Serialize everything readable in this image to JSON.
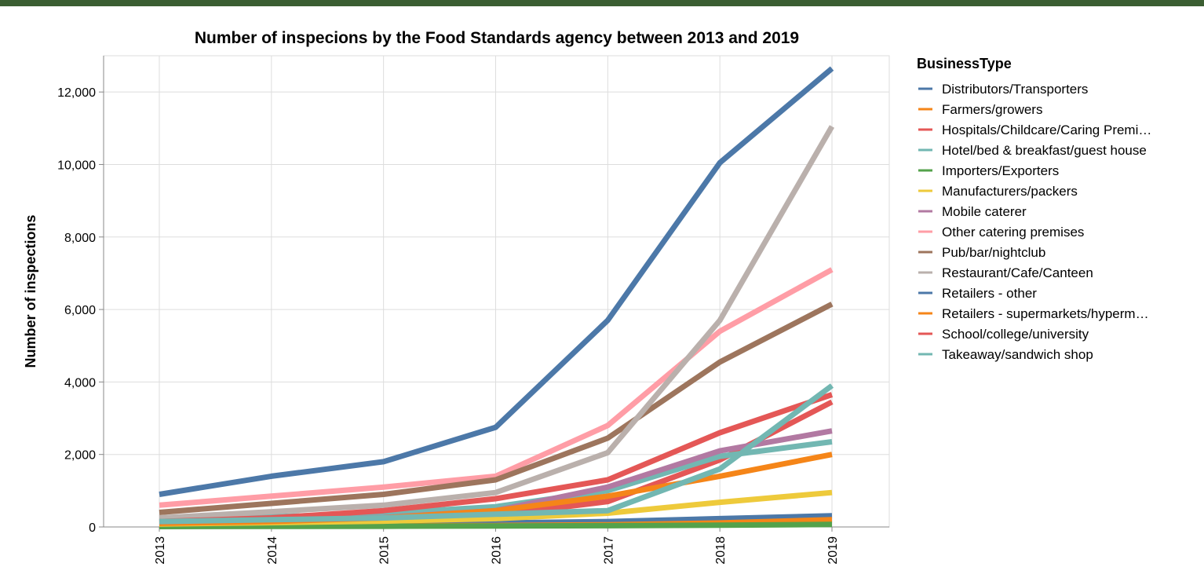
{
  "chart_data": {
    "type": "line",
    "title": "Number of inspecions by the Food Standards agency between 2013 and 2019",
    "xlabel": "",
    "ylabel": "Number of inspections",
    "x": [
      "2013",
      "2014",
      "2015",
      "2016",
      "2017",
      "2018",
      "2019"
    ],
    "y_ticks": [
      "0",
      "2,000",
      "4,000",
      "6,000",
      "8,000",
      "10,000",
      "12,000"
    ],
    "ylim": [
      0,
      13000
    ],
    "grid": true,
    "legend": {
      "title": "BusinessType",
      "position": "right"
    },
    "series": [
      {
        "name": "Distributors/Transporters",
        "color": "#4c78a8",
        "values": [
          60,
          80,
          90,
          110,
          150,
          230,
          310
        ]
      },
      {
        "name": "Farmers/growers",
        "color": "#f58518",
        "values": [
          20,
          25,
          30,
          40,
          60,
          110,
          200
        ]
      },
      {
        "name": "Hospitals/Childcare/Caring Premi…",
        "color": "#e45756",
        "values": [
          150,
          180,
          220,
          320,
          700,
          1850,
          3450
        ]
      },
      {
        "name": "Hotel/bed & breakfast/guest house",
        "color": "#72b7b2",
        "values": [
          200,
          280,
          380,
          560,
          1000,
          1950,
          2350
        ]
      },
      {
        "name": "Importers/Exporters",
        "color": "#54a24b",
        "values": [
          10,
          15,
          20,
          25,
          35,
          50,
          70
        ]
      },
      {
        "name": "Manufacturers/packers",
        "color": "#eeca3b",
        "values": [
          80,
          120,
          160,
          230,
          380,
          680,
          950
        ]
      },
      {
        "name": "Mobile caterer",
        "color": "#b279a2",
        "values": [
          120,
          180,
          260,
          450,
          1100,
          2100,
          2650
        ]
      },
      {
        "name": "Other catering premises",
        "color": "#ff9da6",
        "values": [
          600,
          850,
          1100,
          1400,
          2800,
          5400,
          7100
        ]
      },
      {
        "name": "Pub/bar/nightclub",
        "color": "#9d755d",
        "values": [
          400,
          650,
          900,
          1300,
          2450,
          4550,
          6150
        ]
      },
      {
        "name": "Restaurant/Cafe/Canteen",
        "color": "#bab0ac",
        "values": [
          250,
          420,
          600,
          950,
          2050,
          5700,
          11050
        ]
      },
      {
        "name": "Retailers - other",
        "color": "#4c78a8",
        "values": [
          900,
          1400,
          1800,
          2750,
          5700,
          10050,
          12650
        ]
      },
      {
        "name": "Retailers - supermarkets/hyperm…",
        "color": "#f58518",
        "values": [
          100,
          150,
          250,
          450,
          850,
          1400,
          2000
        ]
      },
      {
        "name": "School/college/university",
        "color": "#e45756",
        "values": [
          150,
          250,
          450,
          780,
          1300,
          2600,
          3650
        ]
      },
      {
        "name": "Takeaway/sandwich shop",
        "color": "#72b7b2",
        "values": [
          150,
          200,
          250,
          350,
          450,
          1600,
          3900
        ]
      }
    ]
  },
  "style": {
    "top_bar_color": "#3b5e32",
    "grid_color": "#dddddd",
    "axis_color": "#888888"
  }
}
